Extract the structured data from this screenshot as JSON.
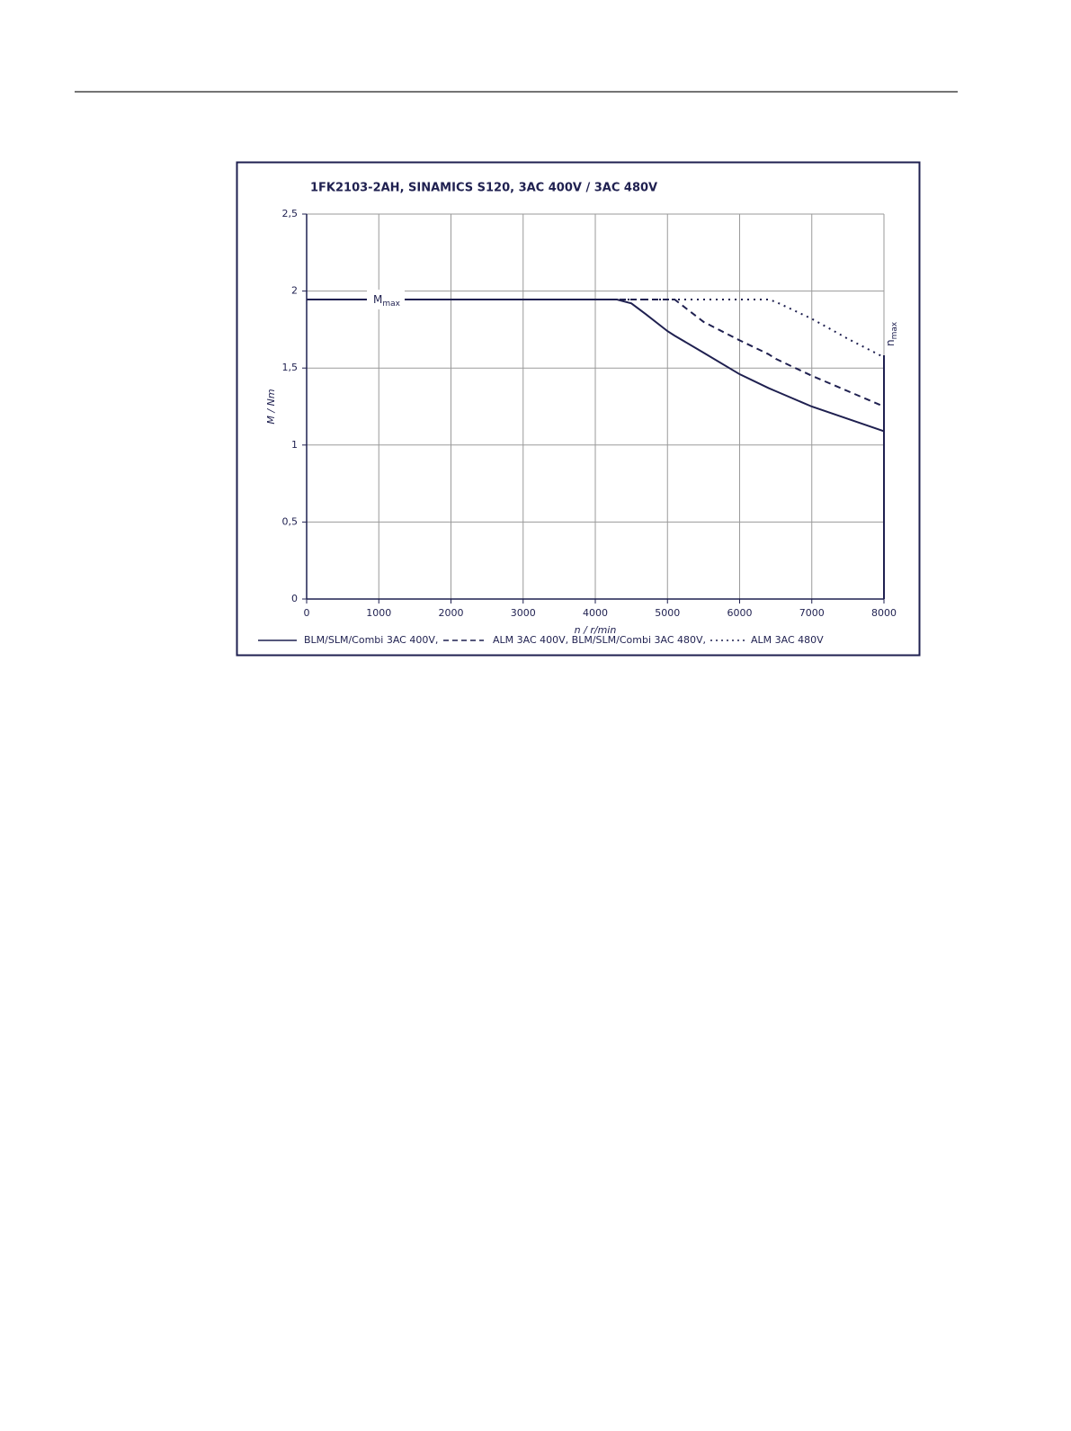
{
  "chart_data": {
    "type": "line",
    "title": "1FK2103-2AH,  SINAMICS S120,  3AC 400V / 3AC 480V",
    "x_label": "n / r/min",
    "y_label": "M / Nm",
    "x": [
      0,
      4300,
      4500,
      4700,
      5000,
      5100,
      5500,
      6000,
      6400,
      6500,
      7000,
      7500,
      8000
    ],
    "series": [
      {
        "name": "BLM/SLM/Combi 3AC 400V,",
        "color": "#1f2050",
        "style": "solid",
        "values": [
          1.945,
          1.945,
          1.92,
          1.85,
          1.74,
          1.71,
          1.6,
          1.46,
          1.37,
          1.35,
          1.25,
          1.17,
          1.09
        ]
      },
      {
        "name": "ALM 3AC 400V, BLM/SLM/Combi 3AC 480V,",
        "color": "#1f2050",
        "style": "dashed",
        "values": [
          1.945,
          1.945,
          1.945,
          1.945,
          1.945,
          1.945,
          1.8,
          1.68,
          1.59,
          1.56,
          1.45,
          1.35,
          1.25
        ]
      },
      {
        "name": "ALM 3AC 480V",
        "color": "#1f2050",
        "style": "dotted",
        "values": [
          1.945,
          1.945,
          1.945,
          1.945,
          1.945,
          1.945,
          1.945,
          1.945,
          1.945,
          1.93,
          1.82,
          1.69,
          1.57
        ]
      }
    ],
    "xlim": [
      0,
      8000
    ],
    "xticks": [
      0,
      1000,
      2000,
      3000,
      4000,
      5000,
      6000,
      7000,
      8000
    ],
    "ylim": [
      0,
      2.5
    ],
    "yticks": [
      0,
      {
        "value": 0.5,
        "label": "0,5"
      },
      1,
      {
        "value": 1.5,
        "label": "1,5"
      },
      2,
      {
        "value": 2.5,
        "label": "2,5"
      }
    ],
    "grid": true,
    "annotations": [
      {
        "text": "M",
        "subscript": "max"
      },
      {
        "text": "n",
        "subscript": "max"
      }
    ]
  }
}
